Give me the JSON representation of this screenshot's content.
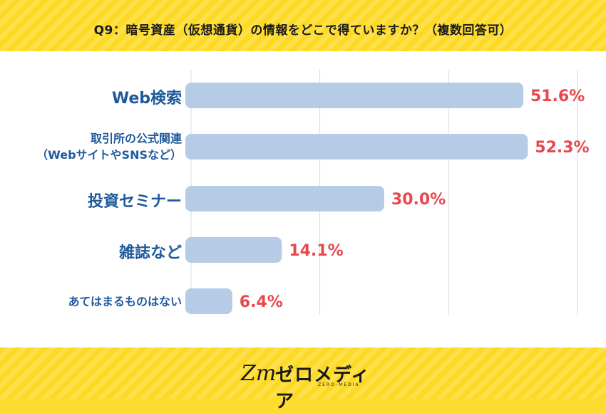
{
  "title": "Q9：暗号資産（仮想通貨）の情報をどこで得ていますか？（複数回答可）",
  "colors": {
    "bar": "#b5cbe6",
    "value_text": "#e8474c",
    "label_text": "#1f5a9c",
    "band": "#fcd923",
    "grid": "#d9d9d9"
  },
  "chart_data": {
    "type": "bar",
    "orientation": "horizontal",
    "categories": [
      [
        "Web検索"
      ],
      [
        "取引所の公式関連",
        "（WebサイトやSNSなど）"
      ],
      [
        "投資セミナー"
      ],
      [
        "雑誌など"
      ],
      [
        "あてはまるものはない"
      ]
    ],
    "values": [
      51.6,
      52.3,
      30.0,
      14.1,
      6.4
    ],
    "value_labels": [
      "51.6%",
      "52.3%",
      "30.0%",
      "14.1%",
      "6.4%"
    ],
    "xlim": [
      0,
      60
    ],
    "grid": true
  },
  "logo": {
    "mark": "Zm",
    "text": "ゼロメディア",
    "subtext": "ZERO-MEDIA"
  }
}
